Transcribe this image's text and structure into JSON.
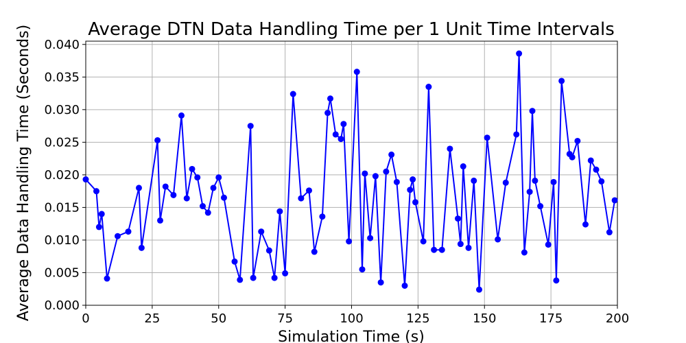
{
  "chart_data": {
    "type": "line",
    "title": "Average DTN Data Handling Time per 1 Unit Time Intervals",
    "xlabel": "Simulation Time (s)",
    "ylabel": "Average Data Handling Time (Seconds)",
    "xlim": [
      0,
      200
    ],
    "ylim": [
      0,
      0.0405
    ],
    "xticks": [
      0,
      25,
      50,
      75,
      100,
      125,
      150,
      175,
      200
    ],
    "xtick_labels": [
      "0",
      "25",
      "50",
      "75",
      "100",
      "125",
      "150",
      "175",
      "200"
    ],
    "yticks": [
      0,
      0.005,
      0.01,
      0.015,
      0.02,
      0.025,
      0.03,
      0.035,
      0.04
    ],
    "ytick_labels": [
      "0.000",
      "0.005",
      "0.010",
      "0.015",
      "0.020",
      "0.025",
      "0.030",
      "0.035",
      "0.040"
    ],
    "grid": true,
    "series": [
      {
        "color": "#0000ff",
        "marker": "circle",
        "x": [
          0,
          4,
          5,
          6,
          8,
          12,
          16,
          20,
          21,
          27,
          28,
          30,
          33,
          36,
          38,
          40,
          42,
          44,
          46,
          48,
          50,
          52,
          56,
          58,
          62,
          63,
          66,
          69,
          71,
          73,
          75,
          78,
          81,
          84,
          86,
          89,
          91,
          92,
          94,
          96,
          97,
          99,
          102,
          104,
          105,
          107,
          109,
          111,
          113,
          115,
          117,
          120,
          122,
          123,
          124,
          127,
          129,
          131,
          134,
          137,
          140,
          141,
          142,
          144,
          146,
          148,
          151,
          155,
          158,
          162,
          163,
          165,
          167,
          168,
          169,
          171,
          174,
          176,
          177,
          179,
          182,
          183,
          185,
          188,
          190,
          192,
          194,
          197,
          199
        ],
        "y": [
          0.0193,
          0.0175,
          0.012,
          0.014,
          0.0041,
          0.0106,
          0.0113,
          0.018,
          0.0088,
          0.0253,
          0.013,
          0.0182,
          0.0169,
          0.0291,
          0.0164,
          0.0209,
          0.0196,
          0.0152,
          0.0142,
          0.018,
          0.0196,
          0.0165,
          0.0067,
          0.0039,
          0.0275,
          0.0042,
          0.0113,
          0.0084,
          0.0042,
          0.0144,
          0.0049,
          0.0324,
          0.0164,
          0.0176,
          0.0082,
          0.0136,
          0.0295,
          0.0317,
          0.0262,
          0.0255,
          0.0278,
          0.0098,
          0.0358,
          0.0055,
          0.0202,
          0.0103,
          0.0198,
          0.0035,
          0.0205,
          0.0231,
          0.0189,
          0.003,
          0.0177,
          0.0193,
          0.0158,
          0.0098,
          0.0335,
          0.0085,
          0.0085,
          0.024,
          0.0133,
          0.0094,
          0.0213,
          0.0088,
          0.0191,
          0.0024,
          0.0257,
          0.0101,
          0.0188,
          0.0262,
          0.0386,
          0.0081,
          0.0174,
          0.0298,
          0.0191,
          0.0152,
          0.0093,
          0.0189,
          0.0038,
          0.0344,
          0.0232,
          0.0227,
          0.0252,
          0.0124,
          0.0222,
          0.0208,
          0.019,
          0.0112,
          0.0161
        ]
      }
    ]
  }
}
